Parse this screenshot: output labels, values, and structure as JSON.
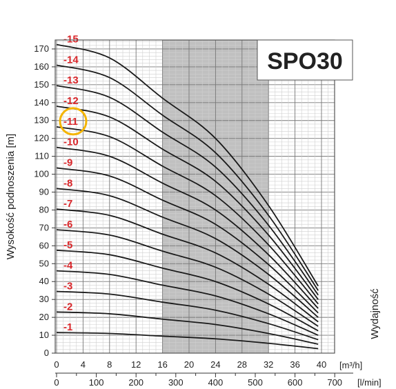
{
  "chart_data": {
    "type": "line",
    "title": "SPO30",
    "ylabel": "Wysokość podnoszenia [m]",
    "xlabel_right": "Wydajność",
    "x_unit_top": "[m³/h]",
    "x_unit_bottom": "[l/min]",
    "ylim": [
      0,
      175
    ],
    "xlim_m3h": [
      0,
      40
    ],
    "yticks": [
      0,
      10,
      20,
      30,
      40,
      50,
      60,
      70,
      80,
      90,
      100,
      110,
      120,
      130,
      140,
      150,
      160,
      170
    ],
    "xticks_m3h": [
      0,
      4,
      8,
      12,
      16,
      20,
      24,
      28,
      32,
      36,
      40
    ],
    "xticks_lmin": [
      0,
      100,
      200,
      300,
      400,
      500,
      600,
      700
    ],
    "grid": true,
    "shaded_range_m3h": [
      16,
      32
    ],
    "highlight_label": "-11",
    "series": [
      {
        "name": "-1",
        "x": [
          0,
          8,
          16,
          24,
          32,
          39.5
        ],
        "y": [
          11.5,
          11,
          9.5,
          8,
          5.5,
          2.5
        ]
      },
      {
        "name": "-2",
        "x": [
          0,
          8,
          16,
          24,
          32,
          39.5
        ],
        "y": [
          23,
          22,
          19,
          16,
          11,
          5
        ]
      },
      {
        "name": "-3",
        "x": [
          0,
          8,
          16,
          24,
          32,
          39.5
        ],
        "y": [
          34.5,
          33,
          28.5,
          24,
          16.5,
          7.5
        ]
      },
      {
        "name": "-4",
        "x": [
          0,
          8,
          16,
          24,
          32,
          39.5
        ],
        "y": [
          46,
          44,
          38,
          32,
          22,
          10
        ]
      },
      {
        "name": "-5",
        "x": [
          0,
          8,
          16,
          24,
          32,
          39.5
        ],
        "y": [
          57.5,
          55,
          47.5,
          40,
          27.5,
          12.5
        ]
      },
      {
        "name": "-6",
        "x": [
          0,
          8,
          16,
          24,
          32,
          39.5
        ],
        "y": [
          69,
          66,
          57,
          48,
          33,
          15
        ]
      },
      {
        "name": "-7",
        "x": [
          0,
          8,
          16,
          24,
          32,
          39.5
        ],
        "y": [
          80.5,
          77,
          66.5,
          56,
          38.5,
          17.5
        ]
      },
      {
        "name": "-8",
        "x": [
          0,
          8,
          16,
          24,
          32,
          39.5
        ],
        "y": [
          92,
          88,
          76,
          64,
          44,
          20
        ]
      },
      {
        "name": "-9",
        "x": [
          0,
          8,
          16,
          24,
          32,
          39.5
        ],
        "y": [
          103.5,
          99,
          85.5,
          72,
          49.5,
          22.5
        ]
      },
      {
        "name": "-10",
        "x": [
          0,
          8,
          16,
          24,
          32,
          39.5
        ],
        "y": [
          115,
          110,
          95,
          80,
          55,
          25
        ]
      },
      {
        "name": "-11",
        "x": [
          0,
          8,
          16,
          24,
          32,
          39.5
        ],
        "y": [
          126.5,
          121,
          104.5,
          88,
          60.5,
          27.5
        ]
      },
      {
        "name": "-12",
        "x": [
          0,
          8,
          16,
          24,
          32,
          39.5
        ],
        "y": [
          138,
          132,
          114,
          96,
          66,
          30
        ]
      },
      {
        "name": "-13",
        "x": [
          0,
          8,
          16,
          24,
          32,
          39.5
        ],
        "y": [
          149.5,
          143,
          123.5,
          104,
          71.5,
          32.5
        ]
      },
      {
        "name": "-14",
        "x": [
          0,
          8,
          16,
          24,
          32,
          39.5
        ],
        "y": [
          161,
          154,
          133,
          112,
          77,
          35
        ]
      },
      {
        "name": "-15",
        "x": [
          0,
          8,
          16,
          24,
          32,
          39.5
        ],
        "y": [
          172.5,
          165,
          142.5,
          120,
          82.5,
          37.5
        ]
      }
    ]
  }
}
